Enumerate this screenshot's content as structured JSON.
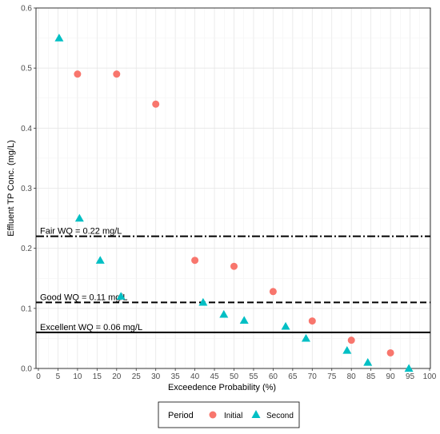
{
  "chart_data": {
    "type": "scatter",
    "xlabel": "Exceedence Probability (%)",
    "ylabel": "Effluent TP Conc. (mg/L)",
    "xlim": [
      0,
      100
    ],
    "ylim": [
      0,
      0.6
    ],
    "x_ticks": [
      "0",
      "5",
      "10",
      "15",
      "20",
      "25",
      "30",
      "35",
      "40",
      "45",
      "50",
      "55",
      "60",
      "65",
      "70",
      "75",
      "80",
      "85",
      "90",
      "95",
      "100"
    ],
    "y_ticks": [
      "0.0",
      "0.1",
      "0.2",
      "0.3",
      "0.4",
      "0.5",
      "0.6"
    ],
    "grid": true,
    "legend": {
      "title": "Period",
      "position": "bottom"
    },
    "series": [
      {
        "name": "Initial",
        "marker": "circle",
        "color": "#F8766D",
        "points": [
          {
            "x": 10,
            "y": 0.49
          },
          {
            "x": 20,
            "y": 0.49
          },
          {
            "x": 30,
            "y": 0.44
          },
          {
            "x": 40,
            "y": 0.18
          },
          {
            "x": 50,
            "y": 0.17
          },
          {
            "x": 60,
            "y": 0.128
          },
          {
            "x": 70,
            "y": 0.079
          },
          {
            "x": 80,
            "y": 0.047
          },
          {
            "x": 90,
            "y": 0.026
          }
        ]
      },
      {
        "name": "Second",
        "marker": "triangle",
        "color": "#00BFC4",
        "points": [
          {
            "x": 5.3,
            "y": 0.55
          },
          {
            "x": 10.5,
            "y": 0.25
          },
          {
            "x": 15.8,
            "y": 0.18
          },
          {
            "x": 21.1,
            "y": 0.12
          },
          {
            "x": 42.1,
            "y": 0.11
          },
          {
            "x": 47.4,
            "y": 0.09
          },
          {
            "x": 52.6,
            "y": 0.08
          },
          {
            "x": 63.2,
            "y": 0.07
          },
          {
            "x": 68.4,
            "y": 0.05
          },
          {
            "x": 78.9,
            "y": 0.03
          },
          {
            "x": 84.2,
            "y": 0.01
          },
          {
            "x": 94.7,
            "y": 0.0
          }
        ]
      }
    ],
    "reference_lines": [
      {
        "label": "Fair WQ = 0.22 mg/L",
        "y": 0.22,
        "style": "dashdot"
      },
      {
        "label": "Good WQ = 0.11 mg/L",
        "y": 0.11,
        "style": "dashed"
      },
      {
        "label": "Excellent WQ = 0.06 mg/L",
        "y": 0.06,
        "style": "solid"
      }
    ]
  }
}
